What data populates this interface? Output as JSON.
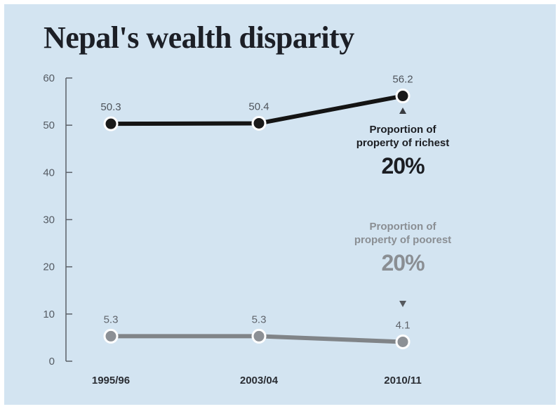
{
  "chart_data": {
    "type": "line",
    "title": "Nepal's wealth disparity",
    "categories": [
      "1995/96",
      "2003/04",
      "2010/11"
    ],
    "ylim": [
      0,
      60
    ],
    "yticks": [
      0,
      10,
      20,
      30,
      40,
      50,
      60
    ],
    "grid": false,
    "series": [
      {
        "key": "richest",
        "values": [
          50.3,
          50.4,
          56.2
        ],
        "labels": [
          "50.3",
          "50.4",
          "56.2"
        ],
        "color": "#141414",
        "marker_fill": "#1a1a1a"
      },
      {
        "key": "poorest",
        "values": [
          5.3,
          5.3,
          4.1
        ],
        "labels": [
          "5.3",
          "5.3",
          "4.1"
        ],
        "color": "#808488",
        "marker_fill": "#8c9095"
      }
    ],
    "annotations": {
      "richest": {
        "text": "Proportion of property of richest",
        "big": "20%"
      },
      "poorest": {
        "text": "Proportion of property of poorest",
        "big": "20%"
      }
    }
  }
}
